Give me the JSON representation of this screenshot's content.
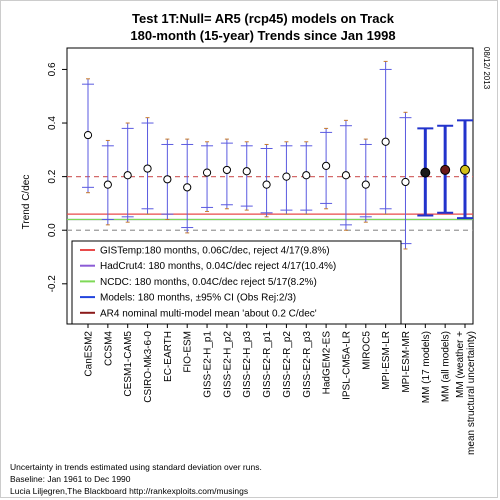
{
  "chart_data": {
    "type": "scatter",
    "title": "Test 1T:Null= AR5 (rcp45)  models on Track",
    "subtitle": "180-month (15-year) Trends since Jan 1998",
    "ylabel": "Trend C/dec",
    "date_stamp": "08/12/ 2013",
    "ylim": [
      -0.35,
      0.68
    ],
    "yticks": [
      -0.2,
      0.0,
      0.2,
      0.4,
      0.6
    ],
    "ytick_labels": [
      "-0.2",
      "0.0",
      "0.2",
      "0.4",
      "0.6"
    ],
    "grid": false,
    "legend_placement": "lower-left",
    "models": [
      {
        "name": "CanESM2",
        "mean": 0.355,
        "range_low": 0.14,
        "range_high": 0.565,
        "ci_low": 0.16,
        "ci_high": 0.545
      },
      {
        "name": "CCSM4",
        "mean": 0.17,
        "range_low": 0.02,
        "range_high": 0.335,
        "ci_low": 0.04,
        "ci_high": 0.315
      },
      {
        "name": "CESM1-CAM5",
        "mean": 0.205,
        "range_low": 0.03,
        "range_high": 0.4,
        "ci_low": 0.05,
        "ci_high": 0.38
      },
      {
        "name": "CSIRO-Mk3-6-0",
        "mean": 0.23,
        "range_low": 0.06,
        "range_high": 0.42,
        "ci_low": 0.08,
        "ci_high": 0.4
      },
      {
        "name": "EC-EARTH",
        "mean": 0.19,
        "range_low": 0.04,
        "range_high": 0.34,
        "ci_low": 0.06,
        "ci_high": 0.32
      },
      {
        "name": "FIO-ESM",
        "mean": 0.16,
        "range_low": -0.01,
        "range_high": 0.34,
        "ci_low": 0.01,
        "ci_high": 0.32
      },
      {
        "name": "GISS-E2-H_p1",
        "mean": 0.215,
        "range_low": 0.07,
        "range_high": 0.33,
        "ci_low": 0.085,
        "ci_high": 0.315
      },
      {
        "name": "GISS-E2-H_p2",
        "mean": 0.225,
        "range_low": 0.08,
        "range_high": 0.34,
        "ci_low": 0.095,
        "ci_high": 0.325
      },
      {
        "name": "GISS-E2-H_p3",
        "mean": 0.22,
        "range_low": 0.075,
        "range_high": 0.33,
        "ci_low": 0.09,
        "ci_high": 0.315
      },
      {
        "name": "GISS-E2-R_p1",
        "mean": 0.17,
        "range_low": 0.05,
        "range_high": 0.32,
        "ci_low": 0.065,
        "ci_high": 0.305
      },
      {
        "name": "GISS-E2-R_p2",
        "mean": 0.2,
        "range_low": 0.06,
        "range_high": 0.33,
        "ci_low": 0.075,
        "ci_high": 0.315
      },
      {
        "name": "GISS-E2-R_p3",
        "mean": 0.205,
        "range_low": 0.06,
        "range_high": 0.33,
        "ci_low": 0.075,
        "ci_high": 0.315
      },
      {
        "name": "HadGEM2-ES",
        "mean": 0.24,
        "range_low": 0.08,
        "range_high": 0.38,
        "ci_low": 0.1,
        "ci_high": 0.365
      },
      {
        "name": "IPSL-CM5A-LR",
        "mean": 0.205,
        "range_low": 0.0,
        "range_high": 0.41,
        "ci_low": 0.02,
        "ci_high": 0.39
      },
      {
        "name": "MIROC5",
        "mean": 0.17,
        "range_low": 0.03,
        "range_high": 0.34,
        "ci_low": 0.05,
        "ci_high": 0.32
      },
      {
        "name": "MPI-ESM-LR",
        "mean": 0.33,
        "range_low": 0.06,
        "range_high": 0.63,
        "ci_low": 0.08,
        "ci_high": 0.6
      },
      {
        "name": "MPI-ESM-MR",
        "mean": 0.18,
        "range_low": -0.07,
        "range_high": 0.44,
        "ci_low": -0.05,
        "ci_high": 0.42
      }
    ],
    "multi_model": [
      {
        "name": "MM (17 models)",
        "mean": 0.215,
        "ci_low": 0.055,
        "ci_high": 0.38,
        "fill": "#1a1a1a"
      },
      {
        "name": "MM (all models)",
        "mean": 0.225,
        "ci_low": 0.065,
        "ci_high": 0.39,
        "fill": "#6b1a1a"
      },
      {
        "name": "MM (weather + mean structural uncertainty)",
        "mean": 0.225,
        "ci_low": 0.045,
        "ci_high": 0.41,
        "fill": "#d4c21a"
      }
    ],
    "reference_lines": [
      {
        "value": 0.06,
        "color": "#e84a4a"
      },
      {
        "value": 0.04,
        "color": "#8b5bd6"
      },
      {
        "value": 0.04,
        "color": "#7ed957"
      },
      {
        "value": 0.2,
        "color": "#d46a6a",
        "dashed": true
      },
      {
        "value": 0.0,
        "color": "#999999",
        "dashed": true
      }
    ],
    "legend": [
      {
        "label": "GISTemp:180 months, 0.06C/dec, reject 4/17(9.8%)",
        "color": "#e84a4a"
      },
      {
        "label": "HadCrut4: 180 months, 0.04C/dec reject 4/17(10.4%)",
        "color": "#8b5bd6"
      },
      {
        "label": "NCDC: 180 months, 0.04C/dec  reject 5/17(8.2%)",
        "color": "#7ed957"
      },
      {
        "label": "Models: 180 months, ±95% CI (Obs Rej:2/3)",
        "color": "#2244dd"
      },
      {
        "label": "AR4 nominal multi-model mean 'about 0.2 C/dec'",
        "color": "#8b1a1a"
      }
    ],
    "colors": {
      "model_line": "#5a5ae0",
      "mm_line": "#2233cc",
      "range_tick": "#c77a2a",
      "axis": "#000000"
    }
  },
  "footer": {
    "line1": "Uncertainty in trends estimated using standard deviation over runs.",
    "line2": "Baseline: Jan 1961 to Dec 1990",
    "line3": "Lucia Liljegren,The Blackboard http://rankexploits.com/musings"
  }
}
